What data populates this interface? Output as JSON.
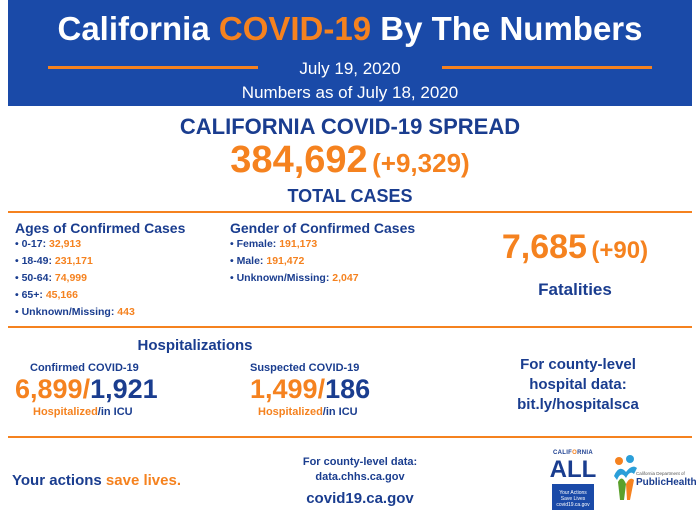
{
  "header": {
    "title_part1": "California",
    "title_highlight": "COVID-19",
    "title_part2": "By The Numbers",
    "date": "July 19, 2020",
    "as_of": "Numbers as of July 18, 2020"
  },
  "spread": {
    "title": "CALIFORNIA COVID-19 SPREAD",
    "total_cases": "384,692",
    "total_delta": "(+9,329)",
    "total_label": "TOTAL CASES"
  },
  "ages": {
    "title": "Ages of Confirmed Cases",
    "items": [
      {
        "label": "0-17:",
        "value": "32,913"
      },
      {
        "label": "18-49:",
        "value": "231,171"
      },
      {
        "label": "50-64:",
        "value": "74,999"
      },
      {
        "label": "65+:",
        "value": "45,166"
      },
      {
        "label": "Unknown/Missing:",
        "value": "443"
      }
    ]
  },
  "gender": {
    "title": "Gender of Confirmed Cases",
    "items": [
      {
        "label": "Female:",
        "value": "191,173"
      },
      {
        "label": "Male:",
        "value": "191,472"
      },
      {
        "label": "Unknown/Missing:",
        "value": "2,047"
      }
    ]
  },
  "fatalities": {
    "number": "7,685",
    "delta": "(+90)",
    "label": "Fatalities"
  },
  "hospitalizations": {
    "title": "Hospitalizations",
    "confirmed": {
      "label": "Confirmed COVID-19",
      "hospitalized": "6,899",
      "slash": "/",
      "icu": "1,921",
      "hosp_label": "Hospitalized",
      "icu_label": "/in ICU"
    },
    "suspected": {
      "label": "Suspected COVID-19",
      "hospitalized": "1,499",
      "slash": "/",
      "icu": "186",
      "hosp_label": "Hospitalized",
      "icu_label": "/in ICU"
    },
    "county_line1": "For county-level",
    "county_line2": "hospital data:",
    "county_link": "bit.ly/hospitalsca"
  },
  "footer": {
    "tagline_part1": "Your actions",
    "tagline_part2": "save lives.",
    "county_data_label": "For county-level data:",
    "county_data_link": "data.chhs.ca.gov",
    "website": "covid19.ca.gov",
    "ca_all_logo": {
      "ca_text": "CALIFORNIA",
      "all_text": "ALL",
      "box_line1": "Your Actions",
      "box_line2": "Save Lives",
      "box_line3": "covid19.ca.gov"
    },
    "cdph_logo": {
      "sub": "California Department of",
      "name": "PublicHealth"
    }
  },
  "colors": {
    "navy": "#1a3d8f",
    "header_blue": "#1a4aa8",
    "orange": "#f5821f"
  }
}
